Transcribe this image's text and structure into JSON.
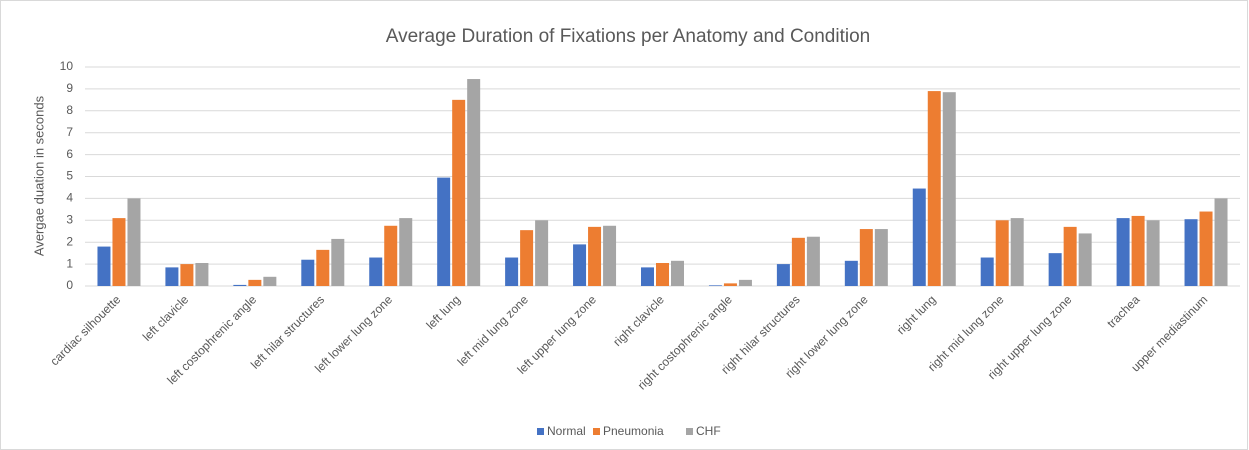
{
  "chart_data": {
    "type": "bar",
    "title": "Average Duration of Fixations per Anatomy and Condition",
    "y_label": "Avergae duation in seconds",
    "categories": [
      "cardiac silhouette",
      "left clavicle",
      "left costophrenic angle",
      "left hilar structures",
      "left lower lung zone",
      "left lung",
      "left mid lung zone",
      "left upper lung zone",
      "right clavicle",
      "right costophrenic angle",
      "right hilar structures",
      "right lower lung zone",
      "right lung",
      "right mid lung zone",
      "right upper lung zone",
      "trachea",
      "upper mediastinum"
    ],
    "series": [
      {
        "name": "Normal",
        "color": "#4472c4",
        "values": [
          1.8,
          0.85,
          0.05,
          1.2,
          1.3,
          4.95,
          1.3,
          1.9,
          0.85,
          0.03,
          1.0,
          1.15,
          4.45,
          1.3,
          1.5,
          3.1,
          3.05
        ]
      },
      {
        "name": "Pneumonia",
        "color": "#ed7d31",
        "values": [
          3.1,
          1.0,
          0.28,
          1.65,
          2.75,
          8.5,
          2.55,
          2.7,
          1.05,
          0.12,
          2.2,
          2.6,
          8.9,
          3.0,
          2.7,
          3.2,
          3.4
        ]
      },
      {
        "name": "CHF",
        "color": "#a5a5a5",
        "values": [
          4.0,
          1.05,
          0.42,
          2.15,
          3.1,
          9.45,
          3.0,
          2.75,
          1.15,
          0.28,
          2.25,
          2.6,
          8.85,
          3.1,
          2.4,
          3.0,
          4.0
        ]
      }
    ],
    "ylim": [
      0,
      10
    ],
    "yticks": [
      0,
      1,
      2,
      3,
      4,
      5,
      6,
      7,
      8,
      9,
      10
    ],
    "grid": true,
    "legend": "bottom"
  }
}
